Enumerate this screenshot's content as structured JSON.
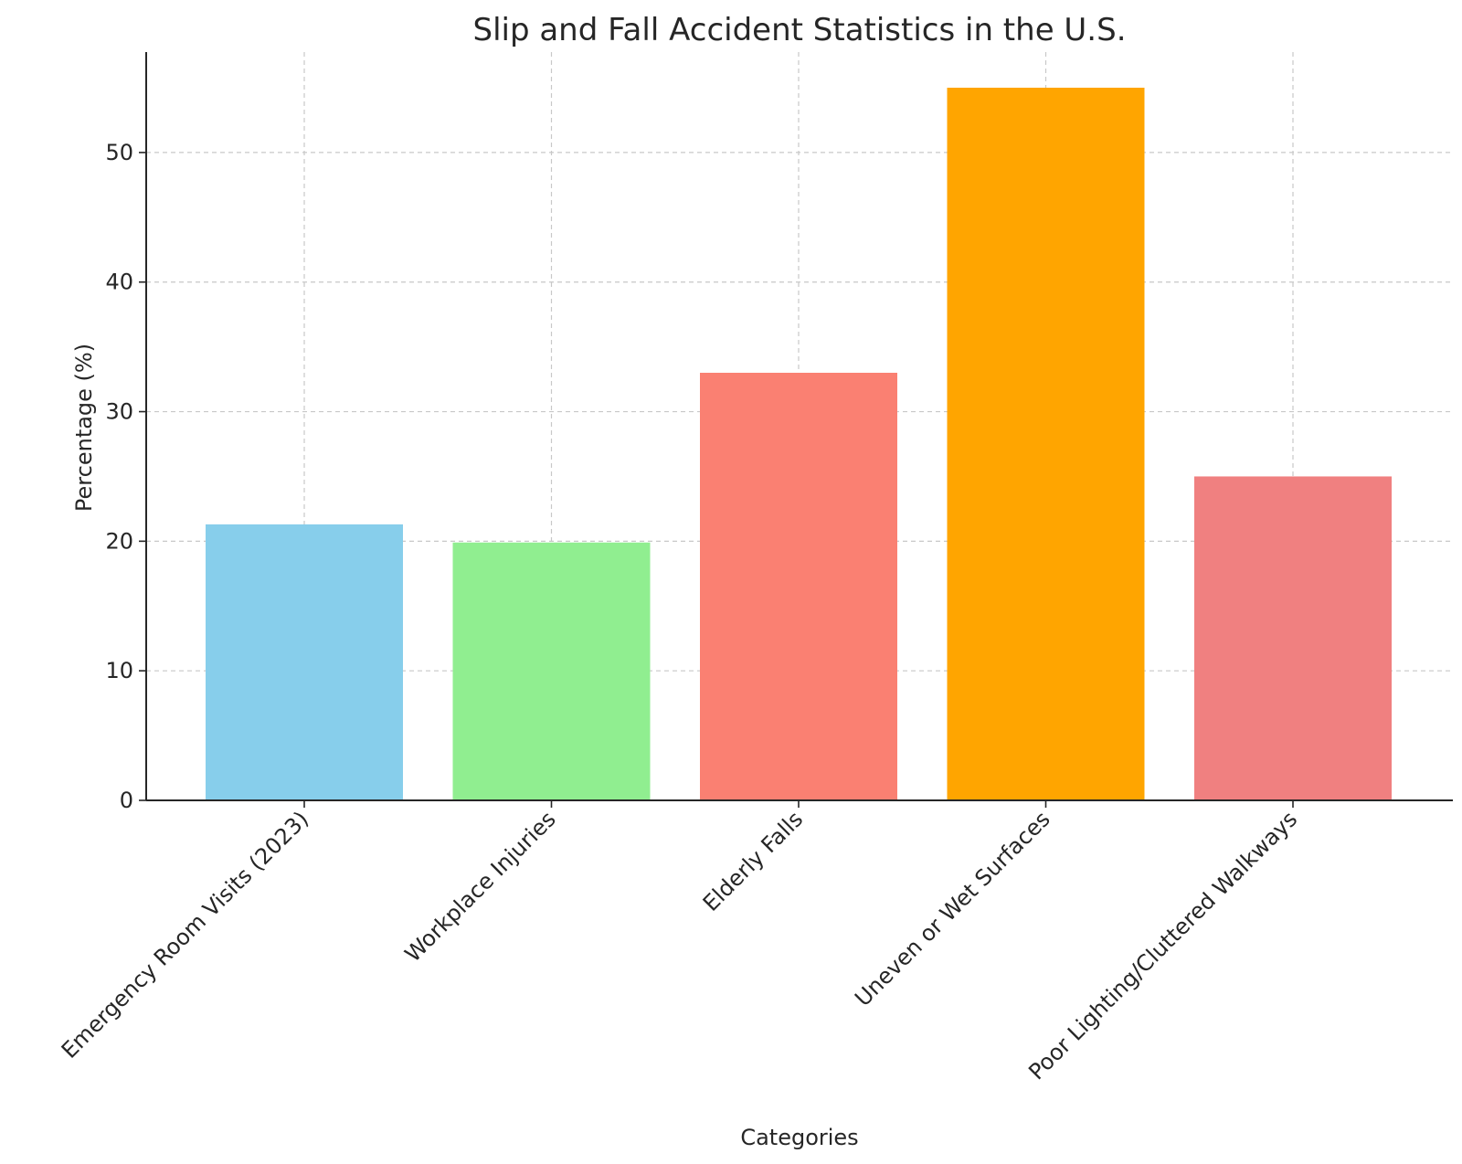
{
  "chart_data": {
    "type": "bar",
    "title": "Slip and Fall Accident Statistics in the U.S.",
    "xlabel": "Categories",
    "ylabel": "Percentage (%)",
    "categories": [
      "Emergency Room Visits (2023)",
      "Workplace Injuries",
      "Elderly Falls",
      "Uneven or Wet Surfaces",
      "Poor Lighting/Cluttered Walkways"
    ],
    "values": [
      21.3,
      19.9,
      33,
      55,
      25
    ],
    "colors": [
      "#87ceeb",
      "#90ee90",
      "#fa8072",
      "#ffa500",
      "#f08080"
    ],
    "ylim": [
      0,
      57.75
    ],
    "yticks": [
      0,
      10,
      20,
      30,
      40,
      50
    ],
    "grid": true,
    "legend": "none"
  }
}
